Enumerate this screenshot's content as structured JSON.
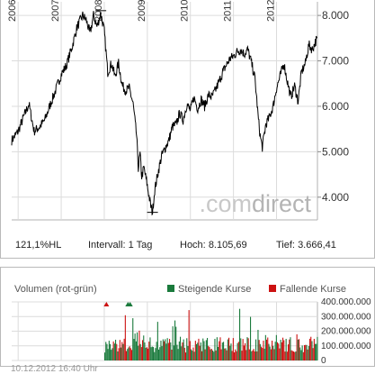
{
  "chart_data": [
    {
      "type": "line",
      "x_ticks": [
        "2006",
        "2007",
        "2008",
        "2009",
        "2010",
        "2011",
        "2012"
      ],
      "y_ticks": [
        "8.000",
        "7.000",
        "6.000",
        "5.000",
        "4.000"
      ],
      "ylim": [
        3.5,
        8.3
      ],
      "grid": true,
      "x": [
        2005.85,
        2006.0,
        2006.12,
        2006.25,
        2006.37,
        2006.5,
        2006.62,
        2006.75,
        2006.87,
        2007.0,
        2007.12,
        2007.25,
        2007.37,
        2007.5,
        2007.58,
        2007.67,
        2007.75,
        2007.83,
        2007.92,
        2008.0,
        2008.08,
        2008.17,
        2008.25,
        2008.33,
        2008.42,
        2008.5,
        2008.58,
        2008.67,
        2008.75,
        2008.79,
        2008.83,
        2008.87,
        2008.92,
        2009.0,
        2009.08,
        2009.12,
        2009.17,
        2009.25,
        2009.33,
        2009.42,
        2009.5,
        2009.58,
        2009.67,
        2009.75,
        2009.83,
        2009.92,
        2010.0,
        2010.08,
        2010.17,
        2010.25,
        2010.33,
        2010.42,
        2010.5,
        2010.58,
        2010.67,
        2010.75,
        2010.83,
        2010.92,
        2011.0,
        2011.08,
        2011.17,
        2011.25,
        2011.33,
        2011.42,
        2011.5,
        2011.58,
        2011.62,
        2011.67,
        2011.75,
        2011.83,
        2011.92,
        2012.0,
        2012.08,
        2012.17,
        2012.25,
        2012.33,
        2012.42,
        2012.5,
        2012.58,
        2012.67,
        2012.75,
        2012.83,
        2012.94
      ],
      "values": [
        5.25,
        5.45,
        5.75,
        6.05,
        5.45,
        5.55,
        5.7,
        6.05,
        6.35,
        6.7,
        6.9,
        7.3,
        7.75,
        8.0,
        7.9,
        7.6,
        8.0,
        7.75,
        8.05,
        7.65,
        6.75,
        6.95,
        6.65,
        6.95,
        6.45,
        6.35,
        6.4,
        6.05,
        5.35,
        4.65,
        4.95,
        4.45,
        4.65,
        4.25,
        3.8,
        3.67,
        4.15,
        4.55,
        4.9,
        5.1,
        5.25,
        5.55,
        5.6,
        5.85,
        5.7,
        6.05,
        5.9,
        6.2,
        5.95,
        6.15,
        6.0,
        6.25,
        6.2,
        6.35,
        6.55,
        6.75,
        6.9,
        7.05,
        7.1,
        7.2,
        7.25,
        7.15,
        7.25,
        6.95,
        6.6,
        5.7,
        5.35,
        5.1,
        5.6,
        5.75,
        6.0,
        6.4,
        6.65,
        6.95,
        6.55,
        6.2,
        6.45,
        6.1,
        6.75,
        6.95,
        7.35,
        7.25,
        7.5
      ]
    },
    {
      "type": "bar",
      "title": "Volumen (rot-grün)",
      "series": [
        {
          "name": "Steigende Kurse",
          "color": "#1a7a3c"
        },
        {
          "name": "Fallende Kurse",
          "color": "#cc1111"
        }
      ],
      "y_ticks": [
        "400.000.000",
        "300.000.000",
        "200.000.000",
        "100.000.000",
        "0"
      ],
      "ylim": [
        0,
        400000000
      ],
      "x_range": [
        2005.85,
        2012.95
      ],
      "volume_start": 2008.0,
      "base_volume": 120000000
    }
  ],
  "info": {
    "hl_pct": "121,1%HL",
    "interval": "Intervall: 1 Tag",
    "high_label": "Hoch:",
    "high_value": "8.105,69",
    "low_label": "Tief:",
    "low_value": "3.666,41"
  },
  "watermark": {
    "part1": ".com",
    "part2": "direct"
  },
  "timestamp": "10.12.2012 16:40 Uhr",
  "colors": {
    "line": "#000000",
    "grid": "#dcdcdc",
    "up": "#1a7a3c",
    "down": "#cc1111"
  }
}
